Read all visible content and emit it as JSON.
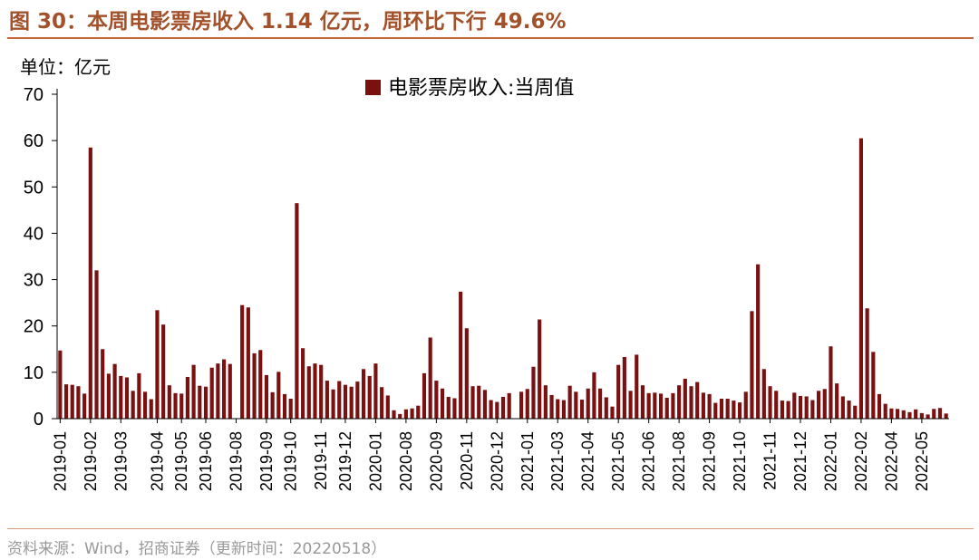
{
  "header": {
    "title": "图 30：本周电影票房收入 1.14 亿元，周环比下行 49.6%"
  },
  "footer": {
    "source": "资料来源：Wind，招商证券（更新时间：20220518）"
  },
  "colors": {
    "bar": "#7b1011",
    "accent": "#c9683a"
  },
  "chart_data": {
    "type": "bar",
    "title": "本周电影票房收入 1.14 亿元，周环比下行 49.6%",
    "unit_label": "单位：亿元",
    "legend": [
      "电影票房收入:当周值"
    ],
    "legend_position": "top-center",
    "ylim": [
      0,
      70
    ],
    "yticks": [
      0,
      10,
      20,
      30,
      40,
      50,
      60,
      70
    ],
    "x_tick_labels": [
      "2019-01",
      "2019-02",
      "2019-03",
      "2019-04",
      "2019-05",
      "2019-06",
      "2019-08",
      "2019-09",
      "2019-10",
      "2019-11",
      "2019-12",
      "2020-01",
      "2020-08",
      "2020-09",
      "2020-11",
      "2020-12",
      "2021-01",
      "2021-03",
      "2021-04",
      "2021-05",
      "2021-06",
      "2021-08",
      "2021-09",
      "2021-10",
      "2021-11",
      "2021-12",
      "2022-01",
      "2022-02",
      "2022-04",
      "2022-05"
    ],
    "x_tick_at_bar": [
      0,
      5,
      10,
      16,
      20,
      24,
      29,
      34,
      38,
      43,
      47,
      52,
      57,
      62,
      67,
      72,
      77,
      82,
      87,
      92,
      97,
      102,
      107,
      112,
      117,
      122,
      127,
      132,
      137,
      142
    ],
    "series": [
      {
        "name": "电影票房收入:当周值",
        "values": [
          14.7,
          7.4,
          7.3,
          7,
          5.4,
          58.5,
          32,
          15,
          9.7,
          11.8,
          9.2,
          8.9,
          6,
          9.8,
          5.8,
          4.2,
          23.4,
          20.3,
          7.2,
          5.5,
          5.4,
          9,
          11.6,
          7.1,
          6.9,
          11,
          11.9,
          12.8,
          11.8,
          null,
          24.5,
          24,
          14.1,
          14.8,
          9.4,
          5.7,
          10.1,
          5.3,
          4.3,
          46.5,
          15.2,
          11.3,
          11.9,
          11.6,
          8.2,
          6.3,
          8.1,
          7.3,
          6.9,
          8,
          10.7,
          9.2,
          11.9,
          6.8,
          5,
          1.8,
          1,
          2,
          2.2,
          2.8,
          9.8,
          17.5,
          8.2,
          6.5,
          4.7,
          4.4,
          27.4,
          19.5,
          7,
          7.1,
          6.2,
          4,
          3.6,
          4.7,
          5.5,
          null,
          5.8,
          6.4,
          11.2,
          21.4,
          7.2,
          5.1,
          4.2,
          4,
          7.1,
          5.8,
          4.1,
          6.5,
          10,
          6.5,
          4.6,
          2.6,
          11.6,
          13.3,
          6,
          13.8,
          7.2,
          5.5,
          5.6,
          5.4,
          4.5,
          5.5,
          7.2,
          8.6,
          7,
          7.9,
          5.6,
          5.3,
          3.4,
          4.3,
          4.3,
          3.9,
          3.5,
          5.8,
          23.2,
          33.3,
          10.7,
          7,
          6,
          3.9,
          3.8,
          5.6,
          4.9,
          4.8,
          4,
          6,
          6.4,
          15.6,
          7.6,
          4.8,
          3.9,
          2.8,
          60.5,
          23.8,
          14.4,
          5.3,
          3.2,
          2.2,
          2.1,
          1.8,
          1.4,
          2,
          1.2,
          0.9,
          2.1,
          2.3,
          1.1
        ]
      }
    ]
  }
}
